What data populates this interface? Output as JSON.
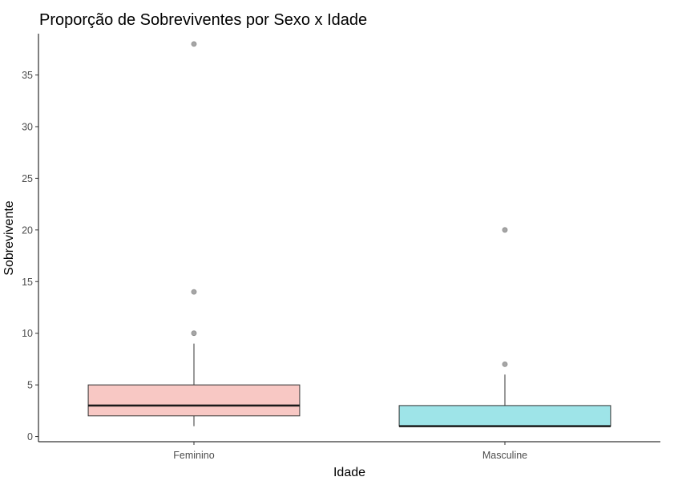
{
  "chart_data": {
    "type": "boxplot",
    "title": "Proporção de Sobreviventes por Sexo x Idade",
    "xlabel": "Idade",
    "ylabel": "Sobrevivente",
    "categories": [
      "Feminino",
      "Masculine"
    ],
    "ylim": [
      -0.5,
      39
    ],
    "yticks": [
      0,
      5,
      10,
      15,
      20,
      25,
      30,
      35
    ],
    "grid": false,
    "legend": "none",
    "boxes": [
      {
        "category": "Feminino",
        "color": "#f8c8c4",
        "whisker_low": 1,
        "q1": 2,
        "median": 3,
        "q3": 5,
        "whisker_high": 9,
        "outliers": [
          10,
          14,
          38
        ]
      },
      {
        "category": "Masculine",
        "color": "#9ee4e8",
        "whisker_low": 1,
        "q1": 1,
        "median": 1,
        "q3": 3,
        "whisker_high": 6,
        "outliers": [
          7,
          20
        ]
      }
    ],
    "outlier_color": "#a6a6a6"
  }
}
